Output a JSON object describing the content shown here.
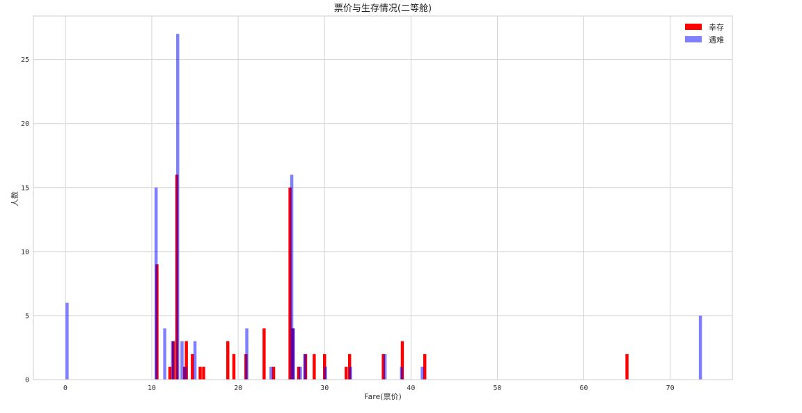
{
  "chart_data": {
    "type": "bar",
    "title": "票价与生存情况(二等舱)",
    "xlabel": "Fare(票价)",
    "ylabel": "人数",
    "xlim": [
      -3.7,
      77.2
    ],
    "ylim": [
      0,
      28.4
    ],
    "xticks": [
      0,
      10,
      20,
      30,
      40,
      50,
      60,
      70
    ],
    "yticks": [
      0,
      5,
      10,
      15,
      20,
      25
    ],
    "grid": true,
    "legend_position": "top-right",
    "bin_width": 0.36,
    "series": [
      {
        "name": "幸存",
        "color": "#ff0000",
        "opacity": 1.0,
        "points": [
          {
            "x": 10.6,
            "y": 9
          },
          {
            "x": 12.1,
            "y": 1
          },
          {
            "x": 12.5,
            "y": 3
          },
          {
            "x": 12.9,
            "y": 16
          },
          {
            "x": 13.8,
            "y": 1
          },
          {
            "x": 14.0,
            "y": 3
          },
          {
            "x": 14.7,
            "y": 2
          },
          {
            "x": 15.6,
            "y": 1
          },
          {
            "x": 16.0,
            "y": 1
          },
          {
            "x": 18.8,
            "y": 3
          },
          {
            "x": 19.5,
            "y": 2
          },
          {
            "x": 20.9,
            "y": 2
          },
          {
            "x": 23.0,
            "y": 4
          },
          {
            "x": 24.1,
            "y": 1
          },
          {
            "x": 26.0,
            "y": 15
          },
          {
            "x": 26.3,
            "y": 4
          },
          {
            "x": 27.0,
            "y": 1
          },
          {
            "x": 27.8,
            "y": 2
          },
          {
            "x": 28.8,
            "y": 2
          },
          {
            "x": 30.0,
            "y": 2
          },
          {
            "x": 32.5,
            "y": 1
          },
          {
            "x": 32.9,
            "y": 2
          },
          {
            "x": 36.8,
            "y": 2
          },
          {
            "x": 39.0,
            "y": 3
          },
          {
            "x": 41.6,
            "y": 2
          },
          {
            "x": 65.0,
            "y": 2
          }
        ]
      },
      {
        "name": "遇难",
        "color": "#0000ff",
        "opacity": 0.5,
        "points": [
          {
            "x": 0.2,
            "y": 6
          },
          {
            "x": 10.5,
            "y": 15
          },
          {
            "x": 11.5,
            "y": 4
          },
          {
            "x": 12.4,
            "y": 3
          },
          {
            "x": 13.0,
            "y": 27
          },
          {
            "x": 13.5,
            "y": 3
          },
          {
            "x": 13.9,
            "y": 1
          },
          {
            "x": 15.0,
            "y": 3
          },
          {
            "x": 21.0,
            "y": 4
          },
          {
            "x": 23.8,
            "y": 1
          },
          {
            "x": 26.2,
            "y": 16
          },
          {
            "x": 26.4,
            "y": 4
          },
          {
            "x": 27.2,
            "y": 1
          },
          {
            "x": 27.7,
            "y": 2
          },
          {
            "x": 30.1,
            "y": 1
          },
          {
            "x": 33.0,
            "y": 1
          },
          {
            "x": 37.0,
            "y": 2
          },
          {
            "x": 38.9,
            "y": 1
          },
          {
            "x": 41.3,
            "y": 1
          },
          {
            "x": 73.5,
            "y": 5
          }
        ]
      }
    ]
  }
}
